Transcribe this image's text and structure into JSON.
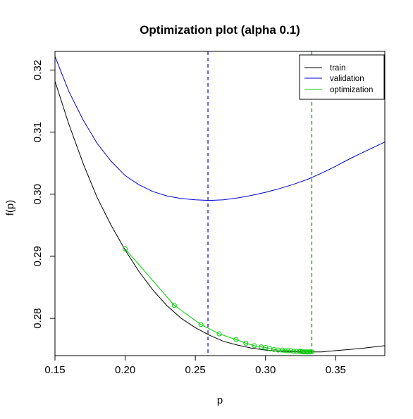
{
  "chart_data": {
    "type": "line",
    "title": "Optimization plot (alpha 0.1)",
    "xlabel": "p",
    "ylabel": "f(p)",
    "xlim": [
      0.15,
      0.385
    ],
    "ylim": [
      0.274,
      0.323
    ],
    "xticks": [
      0.15,
      0.2,
      0.25,
      0.3,
      0.35
    ],
    "xtick_labels": [
      "0.15",
      "0.20",
      "0.25",
      "0.30",
      "0.35"
    ],
    "yticks": [
      0.28,
      0.29,
      0.3,
      0.31,
      0.32
    ],
    "ytick_labels": [
      "0.28",
      "0.29",
      "0.30",
      "0.31",
      "0.32"
    ],
    "legend_position": "top-right",
    "series": [
      {
        "name": "train",
        "color": "#000000",
        "x": [
          0.15,
          0.16,
          0.17,
          0.18,
          0.19,
          0.2,
          0.21,
          0.22,
          0.23,
          0.24,
          0.25,
          0.26,
          0.27,
          0.28,
          0.29,
          0.3,
          0.31,
          0.32,
          0.33,
          0.34,
          0.35,
          0.36,
          0.37,
          0.385
        ],
        "y": [
          0.3182,
          0.3112,
          0.305,
          0.2995,
          0.295,
          0.291,
          0.2875,
          0.2845,
          0.282,
          0.28,
          0.2785,
          0.2773,
          0.2763,
          0.2757,
          0.2752,
          0.2749,
          0.2747,
          0.2746,
          0.2746,
          0.2746,
          0.2748,
          0.275,
          0.2752,
          0.2756
        ]
      },
      {
        "name": "validation",
        "color": "#0000cc",
        "x": [
          0.15,
          0.16,
          0.17,
          0.18,
          0.19,
          0.2,
          0.21,
          0.22,
          0.23,
          0.24,
          0.25,
          0.26,
          0.27,
          0.28,
          0.29,
          0.3,
          0.31,
          0.32,
          0.33,
          0.34,
          0.35,
          0.36,
          0.37,
          0.385
        ],
        "y": [
          0.3222,
          0.3165,
          0.312,
          0.3082,
          0.3053,
          0.303,
          0.3015,
          0.3004,
          0.2997,
          0.2993,
          0.2991,
          0.299,
          0.2991,
          0.2994,
          0.2998,
          0.3003,
          0.3009,
          0.3016,
          0.3024,
          0.3034,
          0.3045,
          0.3057,
          0.3068,
          0.3084
        ]
      },
      {
        "name": "optimization",
        "color": "#00cc00",
        "x": [
          0.2,
          0.235,
          0.254,
          0.267,
          0.279,
          0.286,
          0.292,
          0.297,
          0.3,
          0.303,
          0.306,
          0.309,
          0.312,
          0.314,
          0.316,
          0.318,
          0.32,
          0.322,
          0.324,
          0.325,
          0.326,
          0.327,
          0.328,
          0.329,
          0.33,
          0.331,
          0.332,
          0.333
        ],
        "y": [
          0.2912,
          0.2821,
          0.279,
          0.2775,
          0.2766,
          0.276,
          0.2756,
          0.2754,
          0.2753,
          0.2751,
          0.275,
          0.2749,
          0.2749,
          0.2748,
          0.2748,
          0.2748,
          0.2747,
          0.2747,
          0.2747,
          0.2747,
          0.2746,
          0.2746,
          0.2746,
          0.2746,
          0.2746,
          0.2746,
          0.2746,
          0.2746
        ]
      }
    ],
    "vlines": [
      {
        "x": 0.259,
        "color": "#0000cc",
        "style": "dashed"
      },
      {
        "x": 0.333,
        "color": "#000000",
        "style": "dashed"
      },
      {
        "x": 0.333,
        "color": "#00cc00",
        "style": "dashed"
      }
    ]
  }
}
